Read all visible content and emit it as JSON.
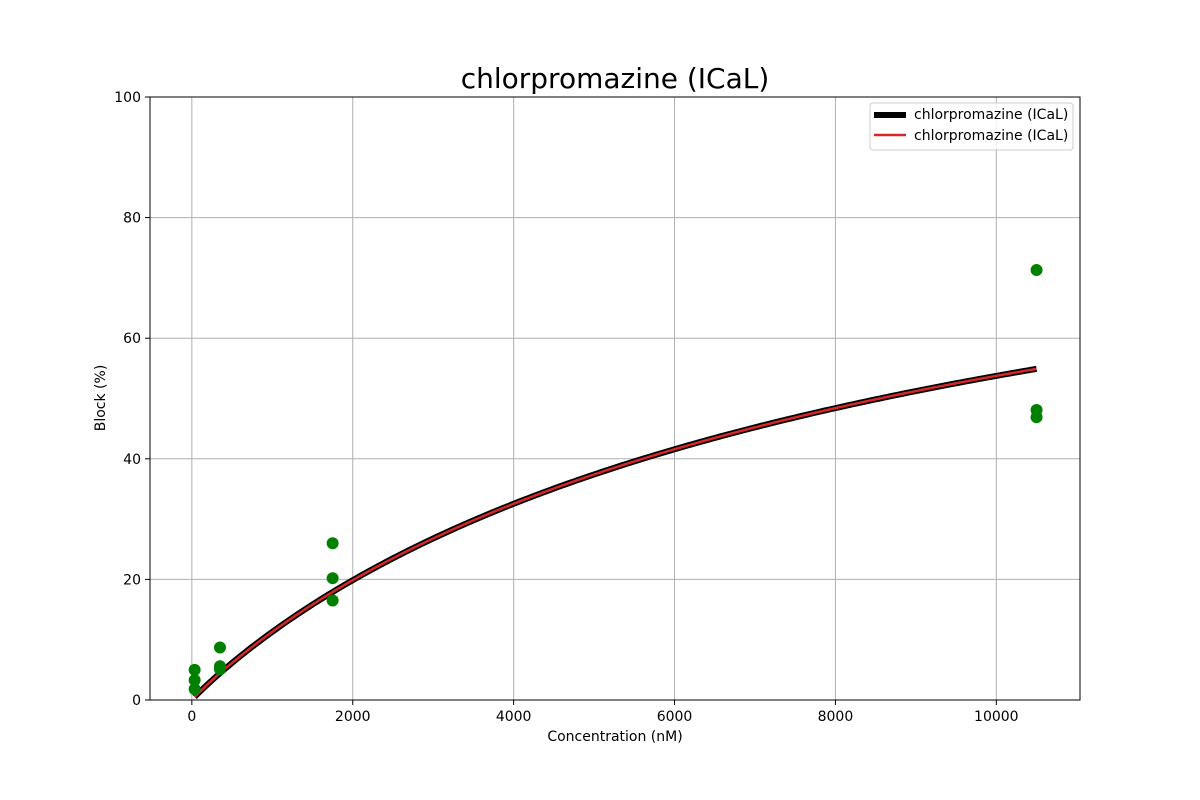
{
  "chart_data": {
    "type": "scatter",
    "title": "chlorpromazine (ICaL)",
    "xlabel": "Concentration (nM)",
    "ylabel": "Block (%)",
    "xlim": [
      -520,
      11040
    ],
    "ylim": [
      0,
      100
    ],
    "xticks": [
      0,
      2000,
      4000,
      6000,
      8000,
      10000
    ],
    "yticks": [
      0,
      20,
      40,
      60,
      80,
      100
    ],
    "grid": true,
    "legend_position": "top-right",
    "points": {
      "color": "#008000",
      "values": [
        {
          "x": 35,
          "y": 5.0
        },
        {
          "x": 35,
          "y": 3.3
        },
        {
          "x": 35,
          "y": 1.8
        },
        {
          "x": 350,
          "y": 8.7
        },
        {
          "x": 350,
          "y": 5.6
        },
        {
          "x": 350,
          "y": 5.1
        },
        {
          "x": 1750,
          "y": 26.0
        },
        {
          "x": 1750,
          "y": 20.2
        },
        {
          "x": 1750,
          "y": 16.5
        },
        {
          "x": 10500,
          "y": 71.3
        },
        {
          "x": 10500,
          "y": 48.1
        },
        {
          "x": 10500,
          "y": 46.9
        }
      ]
    },
    "series": [
      {
        "name": "chlorpromazine (ICaL)",
        "color": "#000000",
        "style": "thick",
        "ic50": 8550,
        "hill": 0.96,
        "x": [
          35,
          10500
        ]
      },
      {
        "name": "chlorpromazine (ICaL)",
        "color": "#d62728",
        "style": "thin",
        "ic50": 8550,
        "hill": 0.96,
        "x": [
          35,
          10500
        ]
      }
    ]
  }
}
